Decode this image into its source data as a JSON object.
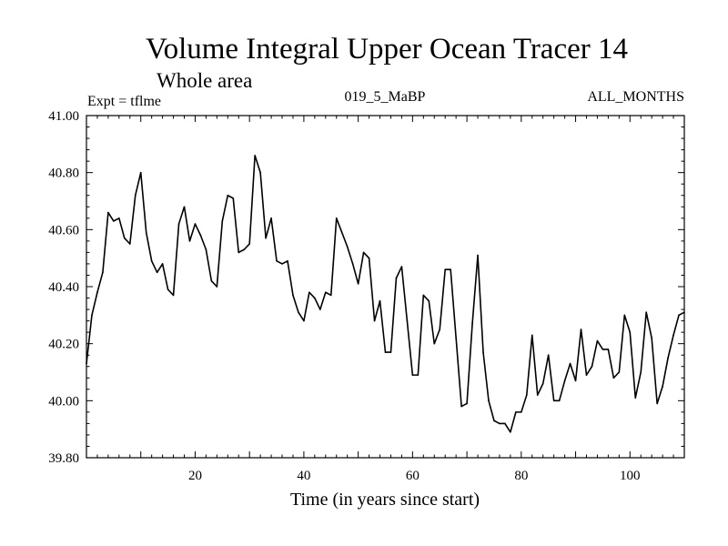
{
  "chart_data": {
    "type": "line",
    "title": "Volume Integral Upper Ocean Tracer 14",
    "subtitle": "Whole area",
    "experiment_label": "Expt = tflme",
    "run_label": "019_5_MaBP",
    "months_label": "ALL_MONTHS",
    "xlabel": "Time (in years since start)",
    "ylabel": "",
    "xlim": [
      0,
      110
    ],
    "ylim": [
      39.8,
      41.0
    ],
    "x_ticks": [
      20,
      40,
      60,
      80,
      100
    ],
    "x_tick_labels": [
      "20",
      "40",
      "60",
      "80",
      "100"
    ],
    "y_ticks": [
      39.8,
      40.0,
      40.2,
      40.4,
      40.6,
      40.8,
      41.0
    ],
    "y_tick_labels": [
      "39.80",
      "40.00",
      "40.20",
      "40.40",
      "40.60",
      "40.80",
      "41.00"
    ],
    "grid": false,
    "line_color": "#000000",
    "series": [
      {
        "name": "Tracer 14",
        "x": [
          0,
          1,
          2,
          3,
          4,
          5,
          6,
          7,
          8,
          9,
          10,
          11,
          12,
          13,
          14,
          15,
          16,
          17,
          18,
          19,
          20,
          21,
          22,
          23,
          24,
          25,
          26,
          27,
          28,
          29,
          30,
          31,
          32,
          33,
          34,
          35,
          36,
          37,
          38,
          39,
          40,
          41,
          42,
          43,
          44,
          45,
          46,
          47,
          48,
          49,
          50,
          51,
          52,
          53,
          54,
          55,
          56,
          57,
          58,
          59,
          60,
          61,
          62,
          63,
          64,
          65,
          66,
          67,
          68,
          69,
          70,
          71,
          72,
          73,
          74,
          75,
          76,
          77,
          78,
          79,
          80,
          81,
          82,
          83,
          84,
          85,
          86,
          87,
          88,
          89,
          90,
          91,
          92,
          93,
          94,
          95,
          96,
          97,
          98,
          99,
          100,
          101,
          102,
          103,
          104,
          105,
          106,
          107,
          108,
          109,
          110
        ],
        "values": [
          40.13,
          40.3,
          40.38,
          40.45,
          40.66,
          40.63,
          40.64,
          40.57,
          40.55,
          40.72,
          40.8,
          40.59,
          40.49,
          40.45,
          40.48,
          40.39,
          40.37,
          40.62,
          40.68,
          40.56,
          40.62,
          40.58,
          40.53,
          40.42,
          40.4,
          40.63,
          40.72,
          40.71,
          40.52,
          40.53,
          40.55,
          40.86,
          40.8,
          40.57,
          40.64,
          40.49,
          40.48,
          40.49,
          40.37,
          40.31,
          40.28,
          40.38,
          40.36,
          40.32,
          40.38,
          40.37,
          40.64,
          40.59,
          40.54,
          40.48,
          40.41,
          40.52,
          40.5,
          40.28,
          40.35,
          40.17,
          40.17,
          40.43,
          40.47,
          40.28,
          40.09,
          40.09,
          40.37,
          40.35,
          40.2,
          40.25,
          40.46,
          40.46,
          40.22,
          39.98,
          39.99,
          40.27,
          40.51,
          40.17,
          40.0,
          39.93,
          39.92,
          39.92,
          39.89,
          39.96,
          39.96,
          40.02,
          40.23,
          40.02,
          40.06,
          40.16,
          40.0,
          40.0,
          40.07,
          40.13,
          40.07,
          40.25,
          40.09,
          40.12,
          40.21,
          40.18,
          40.18,
          40.08,
          40.1,
          40.3,
          40.24,
          40.01,
          40.1,
          40.31,
          40.22,
          39.99,
          40.05,
          40.15,
          40.23,
          40.3,
          40.31
        ]
      }
    ]
  }
}
